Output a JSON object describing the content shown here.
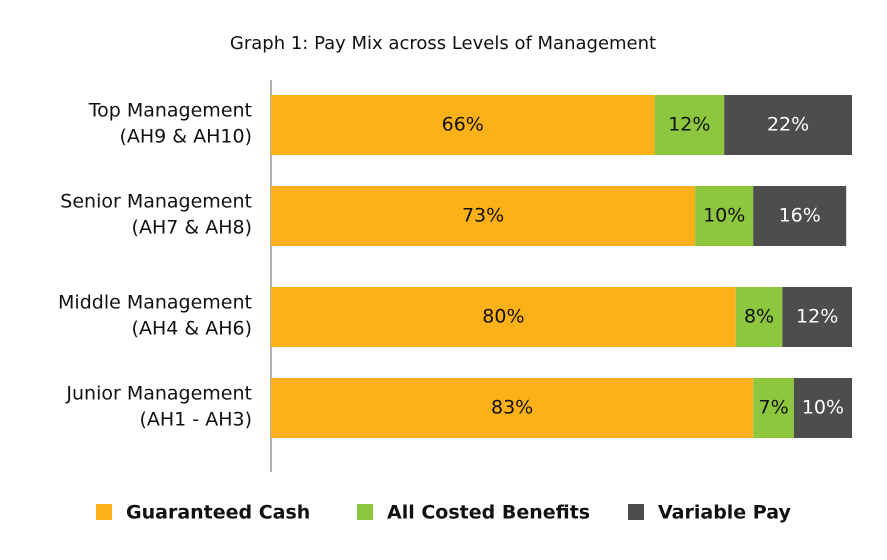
{
  "chart_data": {
    "type": "stacked-barh",
    "title": "Graph 1: Pay Mix across Levels of Management",
    "categories": [
      [
        "Top Management",
        "(AH9 & AH10)"
      ],
      [
        "Senior Management",
        "(AH7 & AH8)"
      ],
      [
        "Middle Management",
        "(AH4 & AH6)"
      ],
      [
        "Junior Management",
        "(AH1 - AH3)"
      ]
    ],
    "xlim": [
      0,
      100
    ],
    "series": [
      {
        "name": "Guaranteed Cash",
        "color": "#fbb117",
        "values": [
          66,
          73,
          80,
          83
        ],
        "value_labels": [
          "66%",
          "73%",
          "80%",
          "83%"
        ]
      },
      {
        "name": "All Costed Benefits",
        "color": "#8dc63f",
        "values": [
          12,
          10,
          8,
          7
        ],
        "value_labels": [
          "12%",
          "10%",
          "8%",
          "7%"
        ]
      },
      {
        "name": "Variable Pay",
        "color": "#4d4d4d",
        "values": [
          22,
          16,
          12,
          10
        ],
        "value_labels": [
          "22%",
          "16%",
          "12%",
          "10%"
        ]
      }
    ]
  }
}
